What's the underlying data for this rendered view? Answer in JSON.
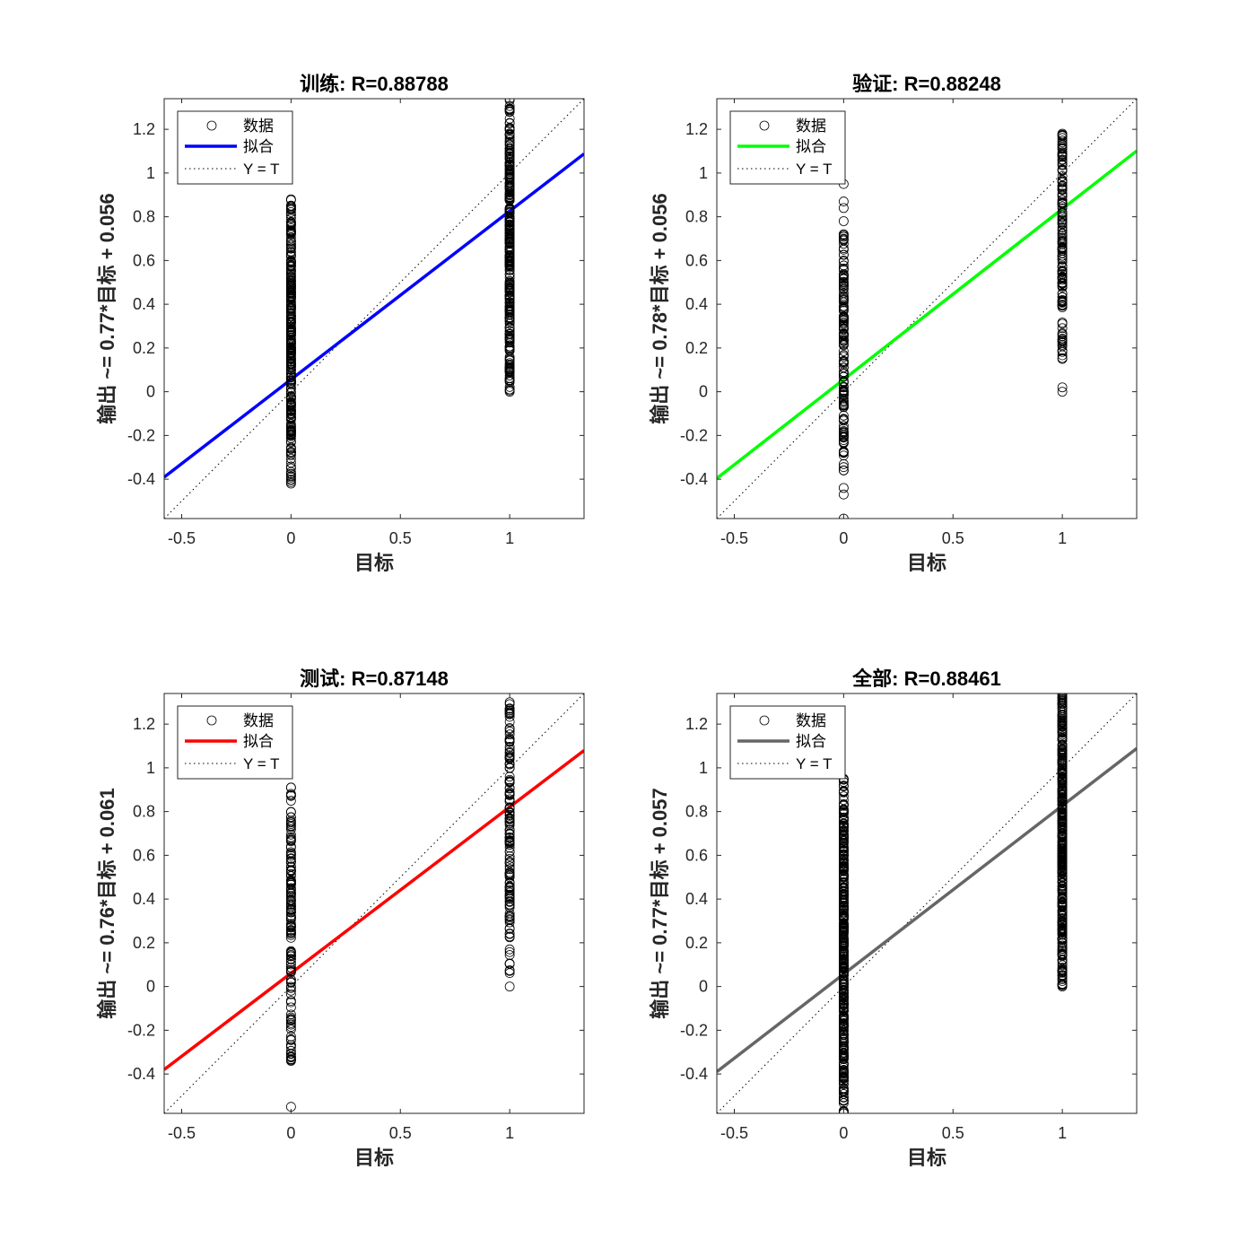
{
  "figure": {
    "point_color": "#000000",
    "identity_color": "#000000"
  },
  "legend_labels": {
    "data": "数据",
    "fit": "拟合",
    "identity": "Y = T"
  },
  "chart_data": [
    {
      "type": "scatter",
      "title": "训练: R=0.88788",
      "xlabel": "目标",
      "ylabel": "输出 ~= 0.77*目标 + 0.056",
      "xlim": [
        -0.58,
        1.34
      ],
      "ylim": [
        -0.58,
        1.34
      ],
      "xticks": [
        -0.5,
        0,
        0.5,
        1
      ],
      "yticks": [
        -0.4,
        -0.2,
        0,
        0.2,
        0.4,
        0.6,
        0.8,
        1,
        1.2
      ],
      "fit": {
        "slope": 0.77,
        "intercept": 0.056,
        "color": "#0000ff"
      },
      "legend_position": "top-left",
      "series": [
        {
          "x": 0,
          "min": -0.42,
          "max": 0.88,
          "extra": [],
          "density": 300
        },
        {
          "x": 1,
          "min": 0.0,
          "max": 1.34,
          "extra": [],
          "density": 300
        }
      ]
    },
    {
      "type": "scatter",
      "title": "验证: R=0.88248",
      "xlabel": "目标",
      "ylabel": "输出 ~= 0.78*目标 + 0.056",
      "xlim": [
        -0.58,
        1.34
      ],
      "ylim": [
        -0.58,
        1.34
      ],
      "xticks": [
        -0.5,
        0,
        0.5,
        1
      ],
      "yticks": [
        -0.4,
        -0.2,
        0,
        0.2,
        0.4,
        0.6,
        0.8,
        1,
        1.2
      ],
      "fit": {
        "slope": 0.78,
        "intercept": 0.056,
        "color": "#00ff00"
      },
      "legend_position": "top-left",
      "series": [
        {
          "x": 0,
          "min": -0.36,
          "max": 0.72,
          "extra": [
            -0.44,
            -0.47,
            -0.58,
            0.78,
            0.84,
            0.87,
            0.95
          ],
          "density": 150
        },
        {
          "x": 1,
          "min": 0.15,
          "max": 1.18,
          "extra": [
            0.0,
            0.02
          ],
          "density": 150
        }
      ]
    },
    {
      "type": "scatter",
      "title": "测试: R=0.87148",
      "xlabel": "目标",
      "ylabel": "输出 ~= 0.76*目标 + 0.061",
      "xlim": [
        -0.58,
        1.34
      ],
      "ylim": [
        -0.58,
        1.34
      ],
      "xticks": [
        -0.5,
        0,
        0.5,
        1
      ],
      "yticks": [
        -0.4,
        -0.2,
        0,
        0.2,
        0.4,
        0.6,
        0.8,
        1,
        1.2
      ],
      "fit": {
        "slope": 0.76,
        "intercept": 0.061,
        "color": "#ff0000"
      },
      "legend_position": "top-left",
      "series": [
        {
          "x": 0,
          "min": -0.34,
          "max": 0.91,
          "extra": [
            -0.55
          ],
          "density": 150
        },
        {
          "x": 1,
          "min": 0.0,
          "max": 1.3,
          "extra": [],
          "density": 150
        }
      ]
    },
    {
      "type": "scatter",
      "title": "全部: R=0.88461",
      "xlabel": "目标",
      "ylabel": "输出 ~= 0.77*目标 + 0.057",
      "xlim": [
        -0.58,
        1.34
      ],
      "ylim": [
        -0.58,
        1.34
      ],
      "xticks": [
        -0.5,
        0,
        0.5,
        1
      ],
      "yticks": [
        -0.4,
        -0.2,
        0,
        0.2,
        0.4,
        0.6,
        0.8,
        1,
        1.2
      ],
      "fit": {
        "slope": 0.77,
        "intercept": 0.057,
        "color": "#666666"
      },
      "legend_position": "top-left",
      "series": [
        {
          "x": 0,
          "min": -0.58,
          "max": 0.95,
          "extra": [],
          "density": 400
        },
        {
          "x": 1,
          "min": 0.0,
          "max": 1.34,
          "extra": [],
          "density": 400
        }
      ]
    }
  ]
}
